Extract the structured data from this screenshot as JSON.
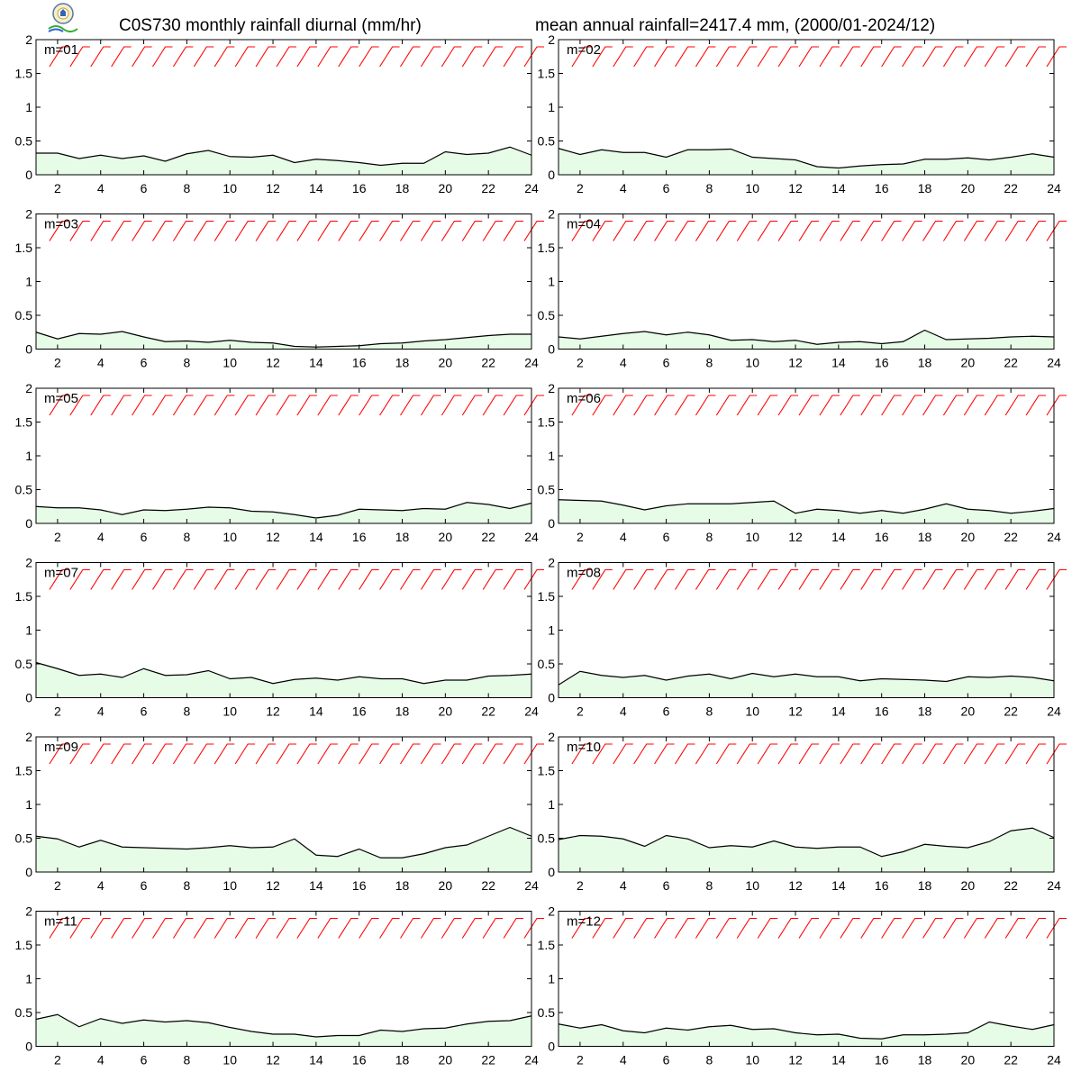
{
  "header": {
    "title_left": "C0S730 monthly rainfall diurnal (mm/hr)",
    "title_right": "mean annual rainfall=2417.4 mm, (2000/01-2024/12)"
  },
  "logo": {
    "icon": "lab-logo-icon"
  },
  "colors": {
    "area_fill": "#e6fce6",
    "line": "#000000",
    "wind_barb": "#ff0000"
  },
  "chart_data": [
    {
      "type": "area",
      "label": "m=01",
      "x": [
        1,
        2,
        3,
        4,
        5,
        6,
        7,
        8,
        9,
        10,
        11,
        12,
        13,
        14,
        15,
        16,
        17,
        18,
        19,
        20,
        21,
        22,
        23,
        24
      ],
      "values": [
        0.32,
        0.32,
        0.24,
        0.29,
        0.24,
        0.28,
        0.2,
        0.31,
        0.36,
        0.27,
        0.26,
        0.29,
        0.18,
        0.23,
        0.21,
        0.18,
        0.14,
        0.17,
        0.17,
        0.34,
        0.3,
        0.32,
        0.41,
        0.29
      ],
      "xticks": [
        "2",
        "4",
        "6",
        "8",
        "10",
        "12",
        "14",
        "16",
        "18",
        "20",
        "22",
        "24"
      ],
      "yticks": [
        "0",
        "0.5",
        "1",
        "1.5",
        "2"
      ],
      "ylim": [
        0,
        2
      ],
      "xlim": [
        1,
        24
      ]
    },
    {
      "type": "area",
      "label": "m=02",
      "x": [
        1,
        2,
        3,
        4,
        5,
        6,
        7,
        8,
        9,
        10,
        11,
        12,
        13,
        14,
        15,
        16,
        17,
        18,
        19,
        20,
        21,
        22,
        23,
        24
      ],
      "values": [
        0.39,
        0.3,
        0.37,
        0.33,
        0.33,
        0.26,
        0.37,
        0.37,
        0.38,
        0.26,
        0.24,
        0.22,
        0.12,
        0.1,
        0.13,
        0.15,
        0.16,
        0.23,
        0.23,
        0.25,
        0.22,
        0.26,
        0.31,
        0.26
      ],
      "xticks": [
        "2",
        "4",
        "6",
        "8",
        "10",
        "12",
        "14",
        "16",
        "18",
        "20",
        "22",
        "24"
      ],
      "yticks": [
        "0",
        "0.5",
        "1",
        "1.5",
        "2"
      ],
      "ylim": [
        0,
        2
      ],
      "xlim": [
        1,
        24
      ]
    },
    {
      "type": "area",
      "label": "m=03",
      "x": [
        1,
        2,
        3,
        4,
        5,
        6,
        7,
        8,
        9,
        10,
        11,
        12,
        13,
        14,
        15,
        16,
        17,
        18,
        19,
        20,
        21,
        22,
        23,
        24
      ],
      "values": [
        0.25,
        0.15,
        0.23,
        0.22,
        0.26,
        0.18,
        0.11,
        0.12,
        0.1,
        0.13,
        0.1,
        0.09,
        0.04,
        0.03,
        0.04,
        0.05,
        0.08,
        0.09,
        0.12,
        0.14,
        0.17,
        0.2,
        0.22,
        0.22
      ],
      "xticks": [
        "2",
        "4",
        "6",
        "8",
        "10",
        "12",
        "14",
        "16",
        "18",
        "20",
        "22",
        "24"
      ],
      "yticks": [
        "0",
        "0.5",
        "1",
        "1.5",
        "2"
      ],
      "ylim": [
        0,
        2
      ],
      "xlim": [
        1,
        24
      ]
    },
    {
      "type": "area",
      "label": "m=04",
      "x": [
        1,
        2,
        3,
        4,
        5,
        6,
        7,
        8,
        9,
        10,
        11,
        12,
        13,
        14,
        15,
        16,
        17,
        18,
        19,
        20,
        21,
        22,
        23,
        24
      ],
      "values": [
        0.18,
        0.15,
        0.19,
        0.23,
        0.26,
        0.21,
        0.25,
        0.21,
        0.13,
        0.14,
        0.11,
        0.13,
        0.07,
        0.1,
        0.11,
        0.08,
        0.11,
        0.28,
        0.14,
        0.15,
        0.16,
        0.18,
        0.19,
        0.18
      ],
      "xticks": [
        "2",
        "4",
        "6",
        "8",
        "10",
        "12",
        "14",
        "16",
        "18",
        "20",
        "22",
        "24"
      ],
      "yticks": [
        "0",
        "0.5",
        "1",
        "1.5",
        "2"
      ],
      "ylim": [
        0,
        2
      ],
      "xlim": [
        1,
        24
      ]
    },
    {
      "type": "area",
      "label": "m=05",
      "x": [
        1,
        2,
        3,
        4,
        5,
        6,
        7,
        8,
        9,
        10,
        11,
        12,
        13,
        14,
        15,
        16,
        17,
        18,
        19,
        20,
        21,
        22,
        23,
        24
      ],
      "values": [
        0.25,
        0.23,
        0.23,
        0.2,
        0.13,
        0.2,
        0.19,
        0.21,
        0.24,
        0.23,
        0.18,
        0.17,
        0.13,
        0.08,
        0.12,
        0.21,
        0.2,
        0.19,
        0.22,
        0.21,
        0.31,
        0.28,
        0.22,
        0.3
      ],
      "xticks": [
        "2",
        "4",
        "6",
        "8",
        "10",
        "12",
        "14",
        "16",
        "18",
        "20",
        "22",
        "24"
      ],
      "yticks": [
        "0",
        "0.5",
        "1",
        "1.5",
        "2"
      ],
      "ylim": [
        0,
        2
      ],
      "xlim": [
        1,
        24
      ]
    },
    {
      "type": "area",
      "label": "m=06",
      "x": [
        1,
        2,
        3,
        4,
        5,
        6,
        7,
        8,
        9,
        10,
        11,
        12,
        13,
        14,
        15,
        16,
        17,
        18,
        19,
        20,
        21,
        22,
        23,
        24
      ],
      "values": [
        0.35,
        0.34,
        0.33,
        0.27,
        0.2,
        0.26,
        0.29,
        0.29,
        0.29,
        0.31,
        0.33,
        0.15,
        0.21,
        0.19,
        0.15,
        0.19,
        0.15,
        0.21,
        0.29,
        0.21,
        0.19,
        0.15,
        0.18,
        0.22
      ],
      "xticks": [
        "2",
        "4",
        "6",
        "8",
        "10",
        "12",
        "14",
        "16",
        "18",
        "20",
        "22",
        "24"
      ],
      "yticks": [
        "0",
        "0.5",
        "1",
        "1.5",
        "2"
      ],
      "ylim": [
        0,
        2
      ],
      "xlim": [
        1,
        24
      ]
    },
    {
      "type": "area",
      "label": "m=07",
      "x": [
        1,
        2,
        3,
        4,
        5,
        6,
        7,
        8,
        9,
        10,
        11,
        12,
        13,
        14,
        15,
        16,
        17,
        18,
        19,
        20,
        21,
        22,
        23,
        24
      ],
      "values": [
        0.52,
        0.43,
        0.33,
        0.35,
        0.3,
        0.43,
        0.33,
        0.34,
        0.4,
        0.28,
        0.3,
        0.21,
        0.27,
        0.29,
        0.26,
        0.31,
        0.28,
        0.28,
        0.21,
        0.26,
        0.26,
        0.32,
        0.33,
        0.35
      ],
      "xticks": [
        "2",
        "4",
        "6",
        "8",
        "10",
        "12",
        "14",
        "16",
        "18",
        "20",
        "22",
        "24"
      ],
      "yticks": [
        "0",
        "0.5",
        "1",
        "1.5",
        "2"
      ],
      "ylim": [
        0,
        2
      ],
      "xlim": [
        1,
        24
      ]
    },
    {
      "type": "area",
      "label": "m=08",
      "x": [
        1,
        2,
        3,
        4,
        5,
        6,
        7,
        8,
        9,
        10,
        11,
        12,
        13,
        14,
        15,
        16,
        17,
        18,
        19,
        20,
        21,
        22,
        23,
        24
      ],
      "values": [
        0.19,
        0.39,
        0.33,
        0.3,
        0.33,
        0.26,
        0.32,
        0.35,
        0.28,
        0.36,
        0.31,
        0.35,
        0.31,
        0.31,
        0.25,
        0.28,
        0.27,
        0.26,
        0.24,
        0.31,
        0.3,
        0.32,
        0.3,
        0.25
      ],
      "xticks": [
        "2",
        "4",
        "6",
        "8",
        "10",
        "12",
        "14",
        "16",
        "18",
        "20",
        "22",
        "24"
      ],
      "yticks": [
        "0",
        "0.5",
        "1",
        "1.5",
        "2"
      ],
      "ylim": [
        0,
        2
      ],
      "xlim": [
        1,
        24
      ]
    },
    {
      "type": "area",
      "label": "m=09",
      "x": [
        1,
        2,
        3,
        4,
        5,
        6,
        7,
        8,
        9,
        10,
        11,
        12,
        13,
        14,
        15,
        16,
        17,
        18,
        19,
        20,
        21,
        22,
        23,
        24
      ],
      "values": [
        0.53,
        0.49,
        0.37,
        0.47,
        0.37,
        0.36,
        0.35,
        0.34,
        0.36,
        0.39,
        0.36,
        0.37,
        0.49,
        0.25,
        0.23,
        0.34,
        0.21,
        0.21,
        0.27,
        0.36,
        0.4,
        0.53,
        0.66,
        0.53
      ],
      "xticks": [
        "2",
        "4",
        "6",
        "8",
        "10",
        "12",
        "14",
        "16",
        "18",
        "20",
        "22",
        "24"
      ],
      "yticks": [
        "0",
        "0.5",
        "1",
        "1.5",
        "2"
      ],
      "ylim": [
        0,
        2
      ],
      "xlim": [
        1,
        24
      ]
    },
    {
      "type": "area",
      "label": "m=10",
      "x": [
        1,
        2,
        3,
        4,
        5,
        6,
        7,
        8,
        9,
        10,
        11,
        12,
        13,
        14,
        15,
        16,
        17,
        18,
        19,
        20,
        21,
        22,
        23,
        24
      ],
      "values": [
        0.48,
        0.54,
        0.53,
        0.49,
        0.38,
        0.54,
        0.49,
        0.36,
        0.39,
        0.37,
        0.46,
        0.37,
        0.35,
        0.37,
        0.37,
        0.23,
        0.3,
        0.41,
        0.38,
        0.36,
        0.45,
        0.61,
        0.65,
        0.51
      ],
      "xticks": [
        "2",
        "4",
        "6",
        "8",
        "10",
        "12",
        "14",
        "16",
        "18",
        "20",
        "22",
        "24"
      ],
      "yticks": [
        "0",
        "0.5",
        "1",
        "1.5",
        "2"
      ],
      "ylim": [
        0,
        2
      ],
      "xlim": [
        1,
        24
      ]
    },
    {
      "type": "area",
      "label": "m=11",
      "x": [
        1,
        2,
        3,
        4,
        5,
        6,
        7,
        8,
        9,
        10,
        11,
        12,
        13,
        14,
        15,
        16,
        17,
        18,
        19,
        20,
        21,
        22,
        23,
        24
      ],
      "values": [
        0.4,
        0.47,
        0.29,
        0.41,
        0.34,
        0.39,
        0.36,
        0.38,
        0.35,
        0.28,
        0.22,
        0.18,
        0.18,
        0.14,
        0.16,
        0.16,
        0.24,
        0.22,
        0.26,
        0.27,
        0.33,
        0.37,
        0.38,
        0.45
      ],
      "xticks": [
        "2",
        "4",
        "6",
        "8",
        "10",
        "12",
        "14",
        "16",
        "18",
        "20",
        "22",
        "24"
      ],
      "yticks": [
        "0",
        "0.5",
        "1",
        "1.5",
        "2"
      ],
      "ylim": [
        0,
        2
      ],
      "xlim": [
        1,
        24
      ]
    },
    {
      "type": "area",
      "label": "m=12",
      "x": [
        1,
        2,
        3,
        4,
        5,
        6,
        7,
        8,
        9,
        10,
        11,
        12,
        13,
        14,
        15,
        16,
        17,
        18,
        19,
        20,
        21,
        22,
        23,
        24
      ],
      "values": [
        0.33,
        0.27,
        0.32,
        0.23,
        0.2,
        0.27,
        0.24,
        0.29,
        0.31,
        0.25,
        0.26,
        0.2,
        0.17,
        0.18,
        0.12,
        0.11,
        0.17,
        0.17,
        0.18,
        0.2,
        0.36,
        0.3,
        0.25,
        0.32
      ],
      "xticks": [
        "2",
        "4",
        "6",
        "8",
        "10",
        "12",
        "14",
        "16",
        "18",
        "20",
        "22",
        "24"
      ],
      "yticks": [
        "0",
        "0.5",
        "1",
        "1.5",
        "2"
      ],
      "ylim": [
        0,
        2
      ],
      "xlim": [
        1,
        24
      ]
    }
  ]
}
